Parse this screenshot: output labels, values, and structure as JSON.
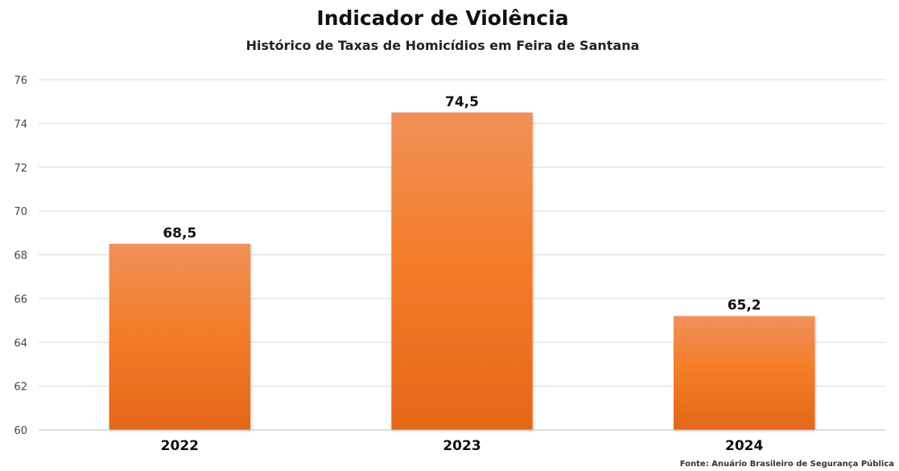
{
  "chart_data": {
    "type": "bar",
    "title": "Indicador de Violência",
    "subtitle": "Histórico de Taxas de Homicídios em Feira de Santana",
    "categories": [
      "2022",
      "2023",
      "2024"
    ],
    "values": [
      68.5,
      74.5,
      65.2
    ],
    "data_labels": [
      "68,5",
      "74,5",
      "65,2"
    ],
    "ylim": [
      60,
      76
    ],
    "yticks": [
      60,
      62,
      64,
      66,
      68,
      70,
      72,
      74,
      76
    ],
    "xlabel": "",
    "ylabel": "",
    "grid": true,
    "legend": "none",
    "bar_color": "#f07a24",
    "source": "Fonte: Anuário Brasileiro de Segurança Pública"
  }
}
